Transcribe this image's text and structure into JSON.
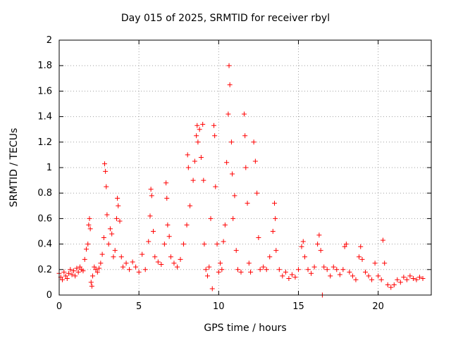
{
  "chart_data": {
    "type": "scatter",
    "title": "Day 015 of 2025, SRMTID for receiver rbyl",
    "xlabel": "GPS time / hours",
    "ylabel": "SRMTID / TECUs",
    "xlim": [
      0,
      23.33
    ],
    "ylim": [
      0,
      2
    ],
    "grid": true,
    "xticks": [
      0,
      5,
      10,
      15,
      20
    ],
    "xtick_labels": [
      "0",
      "5",
      "10",
      "15",
      "20"
    ],
    "yticks": [
      0,
      0.2,
      0.4,
      0.6,
      0.8,
      1,
      1.2,
      1.4,
      1.6,
      1.8,
      2
    ],
    "ytick_labels": [
      "0",
      "0.2",
      "0.4",
      "0.6",
      "0.8",
      "1",
      "1.2",
      "1.4",
      "1.6",
      "1.8",
      "2"
    ],
    "marker": "+",
    "color": "#ff0000",
    "series": [
      {
        "name": "SRMTID",
        "points": [
          [
            0.0,
            0.17
          ],
          [
            0.1,
            0.14
          ],
          [
            0.2,
            0.12
          ],
          [
            0.3,
            0.18
          ],
          [
            0.4,
            0.15
          ],
          [
            0.5,
            0.13
          ],
          [
            0.6,
            0.17
          ],
          [
            0.7,
            0.2
          ],
          [
            0.8,
            0.16
          ],
          [
            0.9,
            0.19
          ],
          [
            1.0,
            0.15
          ],
          [
            1.1,
            0.21
          ],
          [
            1.2,
            0.18
          ],
          [
            1.3,
            0.22
          ],
          [
            1.4,
            0.2
          ],
          [
            1.5,
            0.19
          ],
          [
            1.6,
            0.28
          ],
          [
            1.7,
            0.36
          ],
          [
            1.8,
            0.4
          ],
          [
            1.85,
            0.55
          ],
          [
            1.9,
            0.6
          ],
          [
            1.95,
            0.52
          ],
          [
            2.0,
            0.1
          ],
          [
            2.05,
            0.07
          ],
          [
            2.1,
            0.15
          ],
          [
            2.2,
            0.22
          ],
          [
            2.3,
            0.2
          ],
          [
            2.4,
            0.18
          ],
          [
            2.5,
            0.21
          ],
          [
            2.6,
            0.25
          ],
          [
            2.7,
            0.32
          ],
          [
            2.8,
            0.45
          ],
          [
            2.85,
            1.03
          ],
          [
            2.9,
            0.97
          ],
          [
            2.95,
            0.85
          ],
          [
            3.0,
            0.63
          ],
          [
            3.1,
            0.4
          ],
          [
            3.2,
            0.52
          ],
          [
            3.3,
            0.48
          ],
          [
            3.4,
            0.3
          ],
          [
            3.5,
            0.35
          ],
          [
            3.6,
            0.6
          ],
          [
            3.65,
            0.76
          ],
          [
            3.7,
            0.7
          ],
          [
            3.8,
            0.58
          ],
          [
            3.9,
            0.3
          ],
          [
            4.0,
            0.22
          ],
          [
            4.2,
            0.25
          ],
          [
            4.4,
            0.2
          ],
          [
            4.6,
            0.26
          ],
          [
            4.8,
            0.22
          ],
          [
            5.0,
            0.18
          ],
          [
            5.2,
            0.32
          ],
          [
            5.4,
            0.2
          ],
          [
            5.6,
            0.42
          ],
          [
            5.7,
            0.62
          ],
          [
            5.75,
            0.83
          ],
          [
            5.8,
            0.78
          ],
          [
            5.9,
            0.5
          ],
          [
            6.0,
            0.3
          ],
          [
            6.2,
            0.26
          ],
          [
            6.4,
            0.24
          ],
          [
            6.6,
            0.4
          ],
          [
            6.7,
            0.88
          ],
          [
            6.75,
            0.76
          ],
          [
            6.8,
            0.55
          ],
          [
            6.9,
            0.46
          ],
          [
            7.0,
            0.3
          ],
          [
            7.2,
            0.25
          ],
          [
            7.4,
            0.22
          ],
          [
            7.6,
            0.28
          ],
          [
            7.8,
            0.4
          ],
          [
            8.0,
            0.55
          ],
          [
            8.05,
            1.1
          ],
          [
            8.1,
            1.0
          ],
          [
            8.2,
            0.7
          ],
          [
            8.4,
            0.9
          ],
          [
            8.5,
            1.05
          ],
          [
            8.6,
            1.25
          ],
          [
            8.65,
            1.33
          ],
          [
            8.7,
            1.2
          ],
          [
            8.8,
            1.3
          ],
          [
            8.9,
            1.08
          ],
          [
            9.0,
            1.34
          ],
          [
            9.05,
            0.9
          ],
          [
            9.1,
            0.4
          ],
          [
            9.2,
            0.2
          ],
          [
            9.3,
            0.15
          ],
          [
            9.4,
            0.22
          ],
          [
            9.5,
            0.6
          ],
          [
            9.6,
            0.05
          ],
          [
            9.7,
            1.33
          ],
          [
            9.75,
            1.25
          ],
          [
            9.8,
            0.85
          ],
          [
            9.9,
            0.4
          ],
          [
            10.0,
            0.18
          ],
          [
            10.1,
            0.25
          ],
          [
            10.2,
            0.2
          ],
          [
            10.3,
            0.42
          ],
          [
            10.4,
            0.55
          ],
          [
            10.5,
            1.04
          ],
          [
            10.6,
            1.42
          ],
          [
            10.65,
            1.8
          ],
          [
            10.7,
            1.65
          ],
          [
            10.8,
            1.2
          ],
          [
            10.85,
            0.95
          ],
          [
            10.9,
            0.6
          ],
          [
            11.0,
            0.78
          ],
          [
            11.1,
            0.35
          ],
          [
            11.2,
            0.2
          ],
          [
            11.4,
            0.18
          ],
          [
            11.6,
            1.42
          ],
          [
            11.65,
            1.25
          ],
          [
            11.7,
            1.0
          ],
          [
            11.8,
            0.72
          ],
          [
            11.9,
            0.25
          ],
          [
            12.0,
            0.18
          ],
          [
            12.2,
            1.2
          ],
          [
            12.3,
            1.05
          ],
          [
            12.4,
            0.8
          ],
          [
            12.5,
            0.45
          ],
          [
            12.6,
            0.2
          ],
          [
            12.8,
            0.22
          ],
          [
            13.0,
            0.2
          ],
          [
            13.2,
            0.3
          ],
          [
            13.4,
            0.5
          ],
          [
            13.5,
            0.72
          ],
          [
            13.55,
            0.6
          ],
          [
            13.6,
            0.35
          ],
          [
            13.8,
            0.2
          ],
          [
            14.0,
            0.15
          ],
          [
            14.2,
            0.18
          ],
          [
            14.4,
            0.13
          ],
          [
            14.6,
            0.16
          ],
          [
            14.8,
            0.14
          ],
          [
            15.0,
            0.2
          ],
          [
            15.2,
            0.38
          ],
          [
            15.3,
            0.42
          ],
          [
            15.4,
            0.3
          ],
          [
            15.6,
            0.2
          ],
          [
            15.8,
            0.17
          ],
          [
            16.0,
            0.22
          ],
          [
            16.2,
            0.4
          ],
          [
            16.3,
            0.47
          ],
          [
            16.4,
            0.35
          ],
          [
            16.5,
            0.0
          ],
          [
            16.6,
            0.22
          ],
          [
            16.8,
            0.2
          ],
          [
            17.0,
            0.15
          ],
          [
            17.2,
            0.22
          ],
          [
            17.4,
            0.2
          ],
          [
            17.6,
            0.16
          ],
          [
            17.8,
            0.2
          ],
          [
            17.9,
            0.38
          ],
          [
            18.0,
            0.4
          ],
          [
            18.2,
            0.18
          ],
          [
            18.4,
            0.15
          ],
          [
            18.6,
            0.12
          ],
          [
            18.8,
            0.3
          ],
          [
            18.9,
            0.38
          ],
          [
            19.0,
            0.28
          ],
          [
            19.2,
            0.18
          ],
          [
            19.4,
            0.15
          ],
          [
            19.6,
            0.12
          ],
          [
            19.8,
            0.25
          ],
          [
            20.0,
            0.15
          ],
          [
            20.2,
            0.12
          ],
          [
            20.3,
            0.43
          ],
          [
            20.4,
            0.25
          ],
          [
            20.6,
            0.08
          ],
          [
            20.8,
            0.06
          ],
          [
            21.0,
            0.08
          ],
          [
            21.2,
            0.12
          ],
          [
            21.4,
            0.1
          ],
          [
            21.6,
            0.14
          ],
          [
            21.8,
            0.12
          ],
          [
            22.0,
            0.15
          ],
          [
            22.2,
            0.13
          ],
          [
            22.4,
            0.12
          ],
          [
            22.6,
            0.14
          ],
          [
            22.8,
            0.13
          ]
        ]
      }
    ]
  }
}
